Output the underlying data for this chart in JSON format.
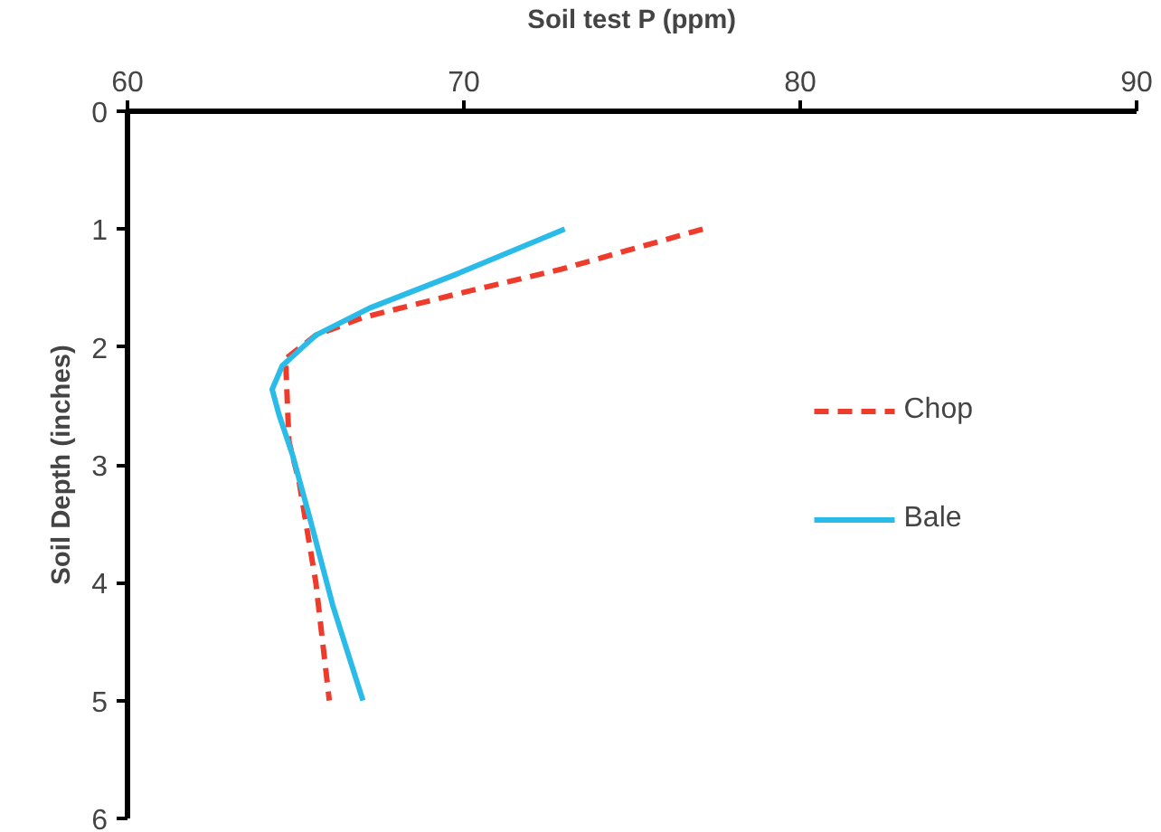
{
  "chart_data": {
    "type": "line",
    "xlabel": "Soil test P (ppm)",
    "ylabel": "Soil Depth (inches)",
    "xlim": [
      60,
      90
    ],
    "xticks": [
      60,
      70,
      80,
      90
    ],
    "ylim": [
      6,
      0
    ],
    "yticks": [
      0,
      1,
      2,
      3,
      4,
      5,
      6
    ],
    "grid": false,
    "legend": "right",
    "marker": "none",
    "series": [
      {
        "name": "Chop",
        "color": "#ee3b2b",
        "line_style": "dashed",
        "x": [
          77.1,
          72.9,
          69.8,
          67.0,
          65.6,
          64.7,
          64.8,
          65.1,
          65.6,
          66.0
        ],
        "values": [
          1,
          1.34,
          1.55,
          1.75,
          1.9,
          2.1,
          2.8,
          3.14,
          4.0,
          5
        ]
      },
      {
        "name": "Bale",
        "color": "#2bbbe8",
        "line_style": "solid",
        "x": [
          73.0,
          69.8,
          67.2,
          65.6,
          64.6,
          64.3,
          64.5,
          64.9,
          65.4,
          66.1,
          67.0
        ],
        "values": [
          1,
          1.38,
          1.67,
          1.9,
          2.16,
          2.36,
          2.57,
          2.91,
          3.43,
          4.19,
          5
        ]
      }
    ]
  }
}
